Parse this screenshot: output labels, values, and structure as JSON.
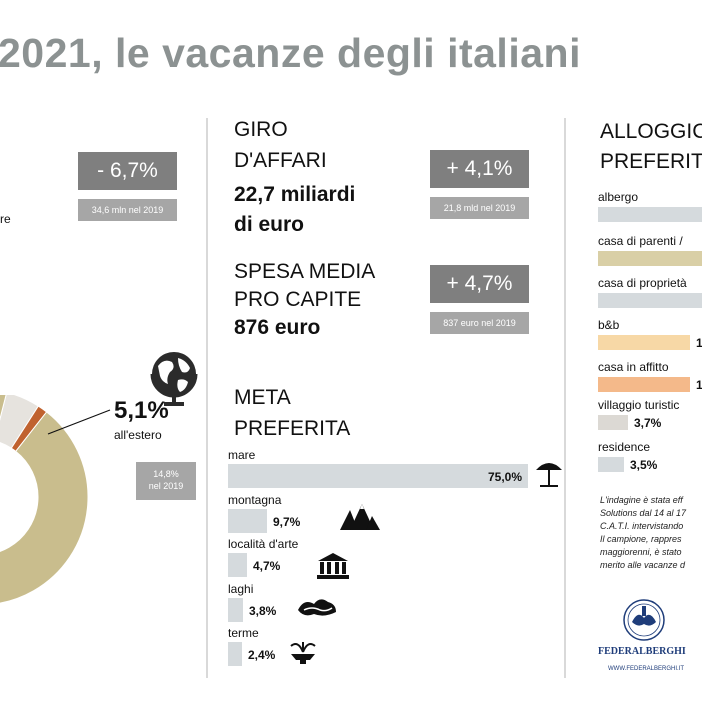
{
  "title": "2021, le vacanze degli italiani",
  "left_panel": {
    "change_pill": "- 6,7%",
    "ref_2019": "34,6 mln nel 2019",
    "fragment_text": "re",
    "abroad_pct": "5,1%",
    "abroad_label": "all'estero",
    "abroad_2019": "14,8%\nnel 2019"
  },
  "giro_affari": {
    "heading_line1": "GIRO",
    "heading_line2": "D'AFFARI",
    "value_line1": "22,7 miliardi",
    "value_line2": "di euro",
    "change_pill": "+ 4,1%",
    "ref_2019": "21,8 mld nel 2019"
  },
  "spesa_media": {
    "heading_line1": "SPESA MEDIA",
    "heading_line2": "PRO CAPITE",
    "value": "876 euro",
    "change_pill": "+ 4,7%",
    "ref_2019": "837 euro nel 2019"
  },
  "meta_preferita": {
    "heading_line1": "META",
    "heading_line2": "PREFERITA"
  },
  "alloggio": {
    "heading_line1": "ALLOGGIC",
    "heading_line2": "PREFERITC",
    "items": [
      {
        "label": "albergo",
        "value": "",
        "color": "#d5dadd"
      },
      {
        "label": "casa di parenti /",
        "value": "",
        "color": "#d9cfa6"
      },
      {
        "label": "casa di proprietà",
        "value": "",
        "color": "#d5dadd"
      },
      {
        "label": "b&b",
        "value": "1",
        "color": "#f7d8a6"
      },
      {
        "label": "casa in affitto",
        "value": "1",
        "color": "#f4b98a"
      },
      {
        "label": "villaggio turistic",
        "value": "3,7%",
        "color": "#dcd9d4"
      },
      {
        "label": "residence",
        "value": "3,5%",
        "color": "#d5dadd"
      }
    ]
  },
  "note_lines": [
    "L'indagine è stata eff",
    "Solutions dal 14 al 17",
    "C.A.T.I. intervistando",
    "Il campione, rappres",
    "maggiorenni, è stato",
    "merito alle vacanze d"
  ],
  "logo": {
    "name": "FEDERALBERGHI",
    "url": "WWW.FEDERALBERGHI.IT"
  },
  "chart_data": {
    "type": "bar",
    "categories": [
      "mare",
      "montagna",
      "località d'arte",
      "laghi",
      "terme"
    ],
    "values": [
      75.0,
      9.7,
      4.7,
      3.8,
      2.4
    ],
    "value_labels": [
      "75,0%",
      "9,7%",
      "4,7%",
      "3,8%",
      "2,4%"
    ],
    "icons": [
      "beach-umbrella-icon",
      "mountains-icon",
      "temple-icon",
      "lake-icon",
      "fountain-icon"
    ],
    "bar_color": "#d5dadd",
    "xlim": [
      0,
      75
    ]
  },
  "donut_chart": {
    "type": "pie",
    "segments": [
      {
        "value": 5.1,
        "color": "#e6e3de"
      },
      {
        "value": 1.5,
        "color": "#c0622f"
      },
      {
        "value": 93.4,
        "color": "#c9bd8d"
      }
    ]
  }
}
